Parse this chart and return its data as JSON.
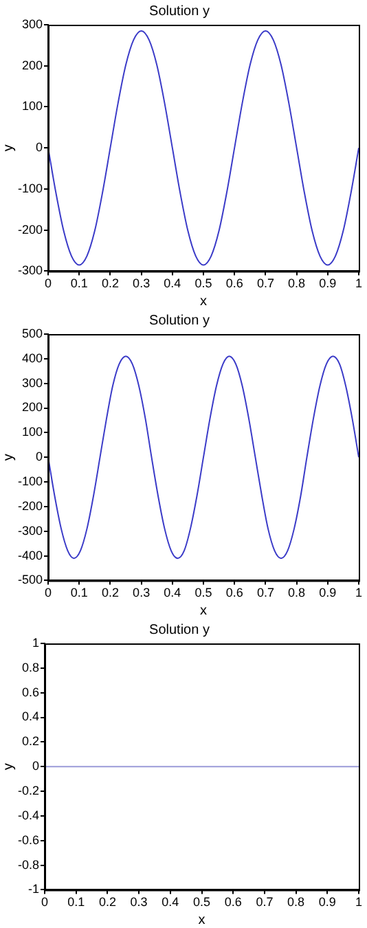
{
  "chart_data": [
    {
      "type": "line",
      "title": "Solution y",
      "xlabel": "x",
      "ylabel": "y",
      "xlim": [
        0,
        1
      ],
      "xticks": [
        0,
        0.1,
        0.2,
        0.3,
        0.4,
        0.5,
        0.6,
        0.7,
        0.8,
        0.9,
        1
      ],
      "ylim": [
        -300,
        300
      ],
      "yticks": [
        -300,
        -200,
        -100,
        0,
        100,
        200,
        300
      ],
      "grid": false,
      "legend": false,
      "marker": "none",
      "series": [
        {
          "color": "#3b3bc8",
          "x": [
            0,
            0.025,
            0.05,
            0.075,
            0.1,
            0.125,
            0.15,
            0.175,
            0.2,
            0.225,
            0.25,
            0.275,
            0.3,
            0.325,
            0.35,
            0.375,
            0.4,
            0.425,
            0.45,
            0.475,
            0.5,
            0.525,
            0.55,
            0.575,
            0.6,
            0.625,
            0.65,
            0.675,
            0.7,
            0.725,
            0.75,
            0.775,
            0.8,
            0.825,
            0.85,
            0.875,
            0.9,
            0.925,
            0.95,
            0.975,
            1
          ],
          "values": [
            0,
            -109,
            -202,
            -263,
            -285,
            -263,
            -202,
            -109,
            0,
            109,
            202,
            263,
            285,
            263,
            202,
            109,
            0,
            -109,
            -202,
            -263,
            -285,
            -263,
            -202,
            -109,
            0,
            109,
            202,
            263,
            285,
            263,
            202,
            109,
            0,
            -109,
            -202,
            -263,
            -285,
            -263,
            -202,
            -109,
            0
          ]
        }
      ]
    },
    {
      "type": "line",
      "title": "Solution y",
      "xlabel": "x",
      "ylabel": "y",
      "xlim": [
        0,
        1
      ],
      "xticks": [
        0,
        0.1,
        0.2,
        0.3,
        0.4,
        0.5,
        0.6,
        0.7,
        0.8,
        0.9,
        1
      ],
      "ylim": [
        -500,
        500
      ],
      "yticks": [
        -500,
        -400,
        -300,
        -200,
        -100,
        0,
        100,
        200,
        300,
        400,
        500
      ],
      "grid": false,
      "legend": false,
      "marker": "none",
      "series": [
        {
          "color": "#3b3bc8",
          "x": [
            0,
            0.021,
            0.042,
            0.063,
            0.083,
            0.104,
            0.125,
            0.146,
            0.167,
            0.188,
            0.208,
            0.229,
            0.25,
            0.271,
            0.292,
            0.313,
            0.333,
            0.354,
            0.375,
            0.396,
            0.417,
            0.438,
            0.458,
            0.479,
            0.5,
            0.521,
            0.542,
            0.563,
            0.583,
            0.604,
            0.625,
            0.646,
            0.667,
            0.688,
            0.708,
            0.729,
            0.75,
            0.771,
            0.792,
            0.813,
            0.833,
            0.854,
            0.875,
            0.896,
            0.917,
            0.938,
            0.958,
            0.979,
            1
          ],
          "values": [
            0,
            -157,
            -290,
            -379,
            -410,
            -379,
            -290,
            -157,
            0,
            157,
            290,
            379,
            410,
            379,
            290,
            157,
            0,
            -157,
            -290,
            -379,
            -410,
            -379,
            -290,
            -157,
            0,
            157,
            290,
            379,
            410,
            379,
            290,
            157,
            0,
            -157,
            -290,
            -379,
            -410,
            -379,
            -290,
            -157,
            0,
            157,
            290,
            379,
            410,
            379,
            290,
            157,
            0
          ]
        }
      ]
    },
    {
      "type": "line",
      "title": "Solution y",
      "xlabel": "x",
      "ylabel": "y",
      "xlim": [
        0,
        1
      ],
      "xticks": [
        0,
        0.1,
        0.2,
        0.3,
        0.4,
        0.5,
        0.6,
        0.7,
        0.8,
        0.9,
        1
      ],
      "ylim": [
        -1,
        1
      ],
      "yticks": [
        -1,
        -0.8,
        -0.6,
        -0.4,
        -0.2,
        0,
        0.2,
        0.4,
        0.6,
        0.8,
        1
      ],
      "grid": false,
      "legend": false,
      "marker": "none",
      "series": [
        {
          "color": "#9a9ad8",
          "x": [
            0,
            1
          ],
          "values": [
            0,
            0
          ]
        }
      ]
    }
  ]
}
